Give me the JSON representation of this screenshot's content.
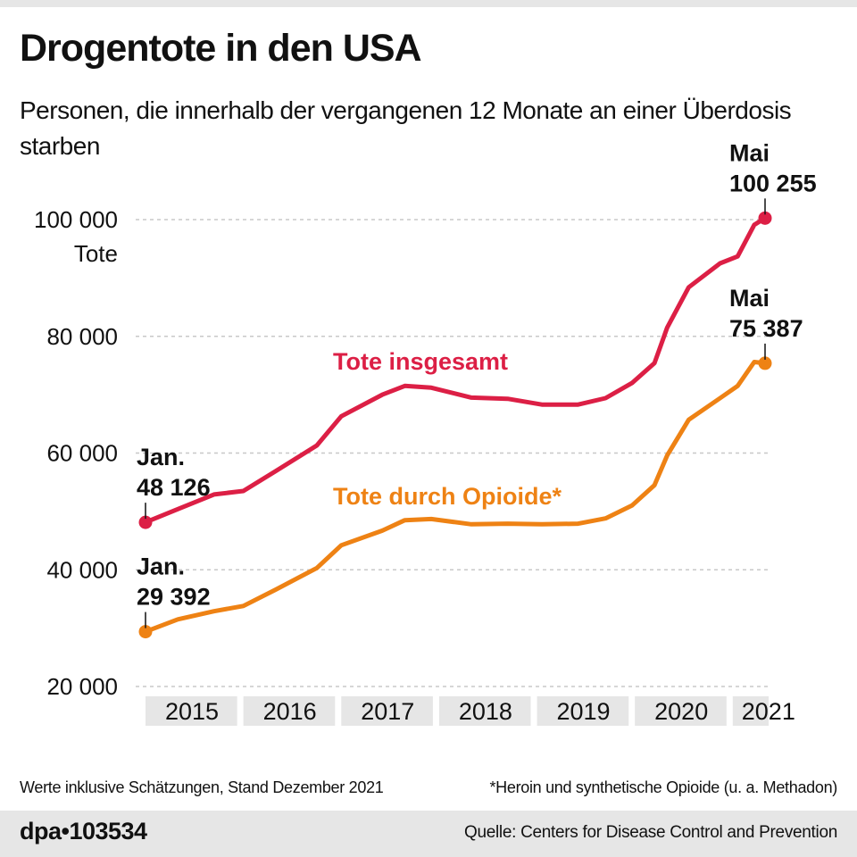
{
  "header": {
    "title": "Drogentote in den USA",
    "subtitle": "Personen, die innerhalb der vergangenen 12 Monate an einer Überdosis starben"
  },
  "colors": {
    "total": "#dc1f45",
    "opioids": "#ee8214",
    "grid": "#c8c8c8",
    "year_band": "#e6e6e6",
    "bar": "#e6e6e6"
  },
  "chart_data": {
    "type": "line",
    "title": "Drogentote in den USA",
    "subtitle": "Personen, die innerhalb der vergangenen 12 Monate an einer Überdosis starben",
    "xlabel": "",
    "ylabel": "Tote",
    "ylim": [
      20000,
      100000
    ],
    "yticks": [
      20000,
      40000,
      60000,
      80000,
      100000
    ],
    "ytick_labels": [
      "20 000",
      "40 000",
      "60 000",
      "80 000",
      "100 000"
    ],
    "y_unit_label": "Tote",
    "xlim": [
      2015.0,
      2021.33
    ],
    "x_tick_labels": [
      "2015",
      "2016",
      "2017",
      "2018",
      "2019",
      "2020",
      "2021"
    ],
    "grid": true,
    "legend": "inline labels",
    "x": [
      2015.0,
      2015.33,
      2015.7,
      2016.0,
      2016.33,
      2016.75,
      2017.0,
      2017.42,
      2017.65,
      2017.92,
      2018.33,
      2018.7,
      2019.05,
      2019.42,
      2019.7,
      2019.97,
      2020.2,
      2020.33,
      2020.55,
      2020.87,
      2021.05,
      2021.22,
      2021.33
    ],
    "series": [
      {
        "name": "Tote insgesamt",
        "color": "#dc1f45",
        "values": [
          48126,
          50400,
          52900,
          53500,
          56900,
          61300,
          66300,
          70000,
          71500,
          71200,
          69500,
          69300,
          68300,
          68300,
          69400,
          72000,
          75400,
          81500,
          88400,
          92500,
          93700,
          99100,
          100255
        ]
      },
      {
        "name": "Tote durch Opioide*",
        "color": "#ee8214",
        "values": [
          29392,
          31500,
          32900,
          33800,
          36600,
          40300,
          44200,
          46700,
          48500,
          48700,
          47800,
          47900,
          47800,
          47900,
          48800,
          51000,
          54500,
          59600,
          65700,
          69400,
          71500,
          75600,
          75387
        ]
      }
    ],
    "annotations": [
      {
        "series": "Tote insgesamt",
        "label_line1": "Jan.",
        "label_line2": "48 126",
        "x": 2015.0,
        "y": 48126
      },
      {
        "series": "Tote insgesamt",
        "label_line1": "Mai",
        "label_line2": "100 255",
        "x": 2021.33,
        "y": 100255
      },
      {
        "series": "Tote durch Opioide*",
        "label_line1": "Jan.",
        "label_line2": "29 392",
        "x": 2015.0,
        "y": 29392
      },
      {
        "series": "Tote durch Opioide*",
        "label_line1": "Mai",
        "label_line2": "75 387",
        "x": 2021.33,
        "y": 75387
      }
    ]
  },
  "footer": {
    "note_left": "Werte inklusive Schätzungen, Stand Dezember 2021",
    "note_right": "*Heroin und synthetische Opioide (u. a. Methadon)",
    "agency": "dpa•103534",
    "source": "Quelle: Centers for Disease Control and Prevention"
  }
}
